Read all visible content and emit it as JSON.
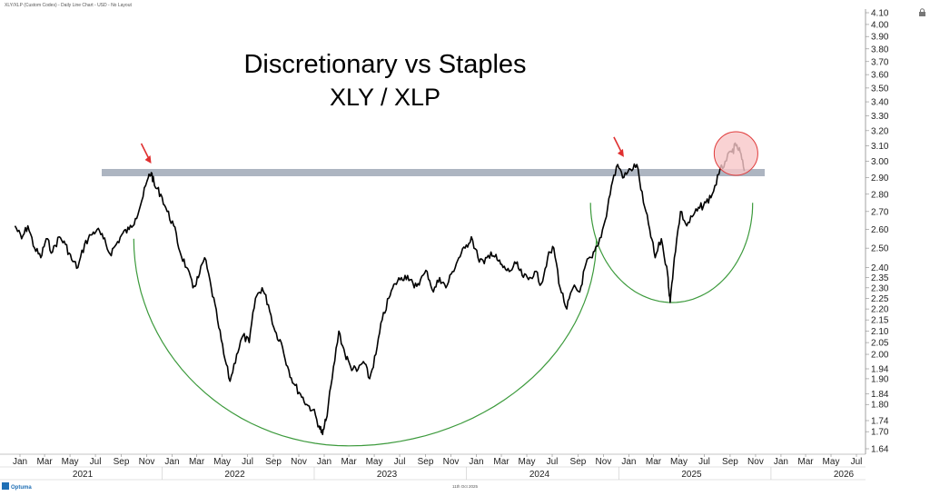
{
  "header": {
    "caption": "XLY/XLP (Custom Codes) - Daily Line Chart - USD - No Layout"
  },
  "footer": {
    "brand": "Optuma",
    "date_stamp": "11th Oct 2025"
  },
  "colors": {
    "price_line": "#000000",
    "resistance_band": "#adb5c1",
    "cup_arcs": "#3c9a3c",
    "arrows": "#e03030",
    "circle_fill": "#f7c7c8",
    "circle_stroke": "#e03a3a",
    "axis": "#8a8a8a"
  },
  "icons": {
    "lock": "lock-icon",
    "logo": "optuma-logo-icon"
  },
  "chart_data": {
    "type": "line",
    "title": "Discretionary vs Staples",
    "subtitle": "XLY / XLP",
    "xlabel": "",
    "ylabel": "",
    "ylim": [
      1.62,
      4.12
    ],
    "y_scale": "log",
    "y_ticks": [
      "4.10",
      "4.00",
      "3.90",
      "3.80",
      "3.70",
      "3.60",
      "3.50",
      "3.40",
      "3.30",
      "3.20",
      "3.10",
      "3.00",
      "2.90",
      "2.80",
      "2.70",
      "2.60",
      "2.50",
      "2.40",
      "2.35",
      "2.30",
      "2.25",
      "2.20",
      "2.15",
      "2.10",
      "2.05",
      "2.00",
      "1.94",
      "1.90",
      "1.84",
      "1.80",
      "1.74",
      "1.70",
      "1.64"
    ],
    "x_month_ticks": [
      {
        "date": "2021-01-01",
        "label": "Jan"
      },
      {
        "date": "2021-03-01",
        "label": "Mar"
      },
      {
        "date": "2021-05-01",
        "label": "May"
      },
      {
        "date": "2021-07-01",
        "label": "Jul"
      },
      {
        "date": "2021-09-01",
        "label": "Sep"
      },
      {
        "date": "2021-11-01",
        "label": "Nov"
      },
      {
        "date": "2022-01-01",
        "label": "Jan"
      },
      {
        "date": "2022-03-01",
        "label": "Mar"
      },
      {
        "date": "2022-05-01",
        "label": "May"
      },
      {
        "date": "2022-07-01",
        "label": "Jul"
      },
      {
        "date": "2022-09-01",
        "label": "Sep"
      },
      {
        "date": "2022-11-01",
        "label": "Nov"
      },
      {
        "date": "2023-01-01",
        "label": "Jan"
      },
      {
        "date": "2023-03-01",
        "label": "Mar"
      },
      {
        "date": "2023-05-01",
        "label": "May"
      },
      {
        "date": "2023-07-01",
        "label": "Jul"
      },
      {
        "date": "2023-09-01",
        "label": "Sep"
      },
      {
        "date": "2023-11-01",
        "label": "Nov"
      },
      {
        "date": "2024-01-01",
        "label": "Jan"
      },
      {
        "date": "2024-03-01",
        "label": "Mar"
      },
      {
        "date": "2024-05-01",
        "label": "May"
      },
      {
        "date": "2024-07-01",
        "label": "Jul"
      },
      {
        "date": "2024-09-01",
        "label": "Sep"
      },
      {
        "date": "2024-11-01",
        "label": "Nov"
      },
      {
        "date": "2025-01-01",
        "label": "Jan"
      },
      {
        "date": "2025-03-01",
        "label": "Mar"
      },
      {
        "date": "2025-05-01",
        "label": "May"
      },
      {
        "date": "2025-07-01",
        "label": "Jul"
      },
      {
        "date": "2025-09-01",
        "label": "Sep"
      },
      {
        "date": "2025-11-01",
        "label": "Nov"
      },
      {
        "date": "2026-01-01",
        "label": "Jan"
      },
      {
        "date": "2026-03-01",
        "label": "Mar"
      },
      {
        "date": "2026-05-01",
        "label": "May"
      },
      {
        "date": "2026-07-01",
        "label": "Jul"
      }
    ],
    "x_year_labels": [
      {
        "date": "2021-07-01",
        "label": "2021"
      },
      {
        "date": "2022-07-01",
        "label": "2022"
      },
      {
        "date": "2023-07-01",
        "label": "2023"
      },
      {
        "date": "2024-07-01",
        "label": "2024"
      },
      {
        "date": "2025-07-01",
        "label": "2025"
      },
      {
        "date": "2026-07-01",
        "label": "2026"
      }
    ],
    "x_year_boundaries": [
      "2022-01-01",
      "2023-01-01",
      "2024-01-01",
      "2025-01-01",
      "2026-01-01"
    ],
    "series": [
      {
        "points": [
          [
            "2020-12-20",
            2.62
          ],
          [
            "2021-01-05",
            2.55
          ],
          [
            "2021-01-20",
            2.62
          ],
          [
            "2021-02-05",
            2.5
          ],
          [
            "2021-02-20",
            2.45
          ],
          [
            "2021-03-05",
            2.55
          ],
          [
            "2021-03-20",
            2.48
          ],
          [
            "2021-04-05",
            2.56
          ],
          [
            "2021-04-20",
            2.52
          ],
          [
            "2021-05-05",
            2.44
          ],
          [
            "2021-05-20",
            2.4
          ],
          [
            "2021-06-05",
            2.52
          ],
          [
            "2021-06-20",
            2.57
          ],
          [
            "2021-07-05",
            2.6
          ],
          [
            "2021-07-20",
            2.55
          ],
          [
            "2021-08-05",
            2.47
          ],
          [
            "2021-08-20",
            2.52
          ],
          [
            "2021-09-05",
            2.58
          ],
          [
            "2021-09-20",
            2.6
          ],
          [
            "2021-10-05",
            2.66
          ],
          [
            "2021-10-20",
            2.76
          ],
          [
            "2021-11-05",
            2.9
          ],
          [
            "2021-11-12",
            2.93
          ],
          [
            "2021-11-20",
            2.85
          ],
          [
            "2021-12-05",
            2.8
          ],
          [
            "2021-12-20",
            2.7
          ],
          [
            "2022-01-05",
            2.62
          ],
          [
            "2022-01-20",
            2.48
          ],
          [
            "2022-02-05",
            2.4
          ],
          [
            "2022-02-20",
            2.3
          ],
          [
            "2022-03-05",
            2.35
          ],
          [
            "2022-03-20",
            2.45
          ],
          [
            "2022-04-05",
            2.3
          ],
          [
            "2022-04-20",
            2.15
          ],
          [
            "2022-05-05",
            2.0
          ],
          [
            "2022-05-20",
            1.89
          ],
          [
            "2022-06-05",
            2.0
          ],
          [
            "2022-06-20",
            2.08
          ],
          [
            "2022-07-05",
            2.05
          ],
          [
            "2022-07-20",
            2.25
          ],
          [
            "2022-08-05",
            2.3
          ],
          [
            "2022-08-20",
            2.22
          ],
          [
            "2022-09-05",
            2.1
          ],
          [
            "2022-09-20",
            2.05
          ],
          [
            "2022-10-05",
            1.95
          ],
          [
            "2022-10-20",
            1.88
          ],
          [
            "2022-11-05",
            1.84
          ],
          [
            "2022-11-20",
            1.8
          ],
          [
            "2022-12-05",
            1.78
          ],
          [
            "2022-12-20",
            1.72
          ],
          [
            "2022-12-28",
            1.69
          ],
          [
            "2023-01-05",
            1.74
          ],
          [
            "2023-01-20",
            1.9
          ],
          [
            "2023-02-05",
            2.1
          ],
          [
            "2023-02-20",
            2.0
          ],
          [
            "2023-03-05",
            1.95
          ],
          [
            "2023-03-20",
            1.93
          ],
          [
            "2023-04-05",
            1.97
          ],
          [
            "2023-04-20",
            1.9
          ],
          [
            "2023-05-05",
            2.0
          ],
          [
            "2023-05-20",
            2.15
          ],
          [
            "2023-06-05",
            2.25
          ],
          [
            "2023-06-20",
            2.32
          ],
          [
            "2023-07-05",
            2.35
          ],
          [
            "2023-07-20",
            2.36
          ],
          [
            "2023-08-05",
            2.3
          ],
          [
            "2023-08-20",
            2.34
          ],
          [
            "2023-09-05",
            2.38
          ],
          [
            "2023-09-20",
            2.28
          ],
          [
            "2023-10-05",
            2.35
          ],
          [
            "2023-10-20",
            2.3
          ],
          [
            "2023-11-05",
            2.38
          ],
          [
            "2023-11-20",
            2.45
          ],
          [
            "2023-12-05",
            2.5
          ],
          [
            "2023-12-20",
            2.56
          ],
          [
            "2024-01-05",
            2.45
          ],
          [
            "2024-01-20",
            2.42
          ],
          [
            "2024-02-05",
            2.48
          ],
          [
            "2024-02-20",
            2.44
          ],
          [
            "2024-03-05",
            2.4
          ],
          [
            "2024-03-20",
            2.38
          ],
          [
            "2024-04-05",
            2.42
          ],
          [
            "2024-04-20",
            2.36
          ],
          [
            "2024-05-05",
            2.34
          ],
          [
            "2024-05-20",
            2.38
          ],
          [
            "2024-06-05",
            2.32
          ],
          [
            "2024-06-20",
            2.45
          ],
          [
            "2024-07-05",
            2.5
          ],
          [
            "2024-07-20",
            2.3
          ],
          [
            "2024-08-05",
            2.2
          ],
          [
            "2024-08-20",
            2.3
          ],
          [
            "2024-09-05",
            2.28
          ],
          [
            "2024-09-20",
            2.42
          ],
          [
            "2024-10-05",
            2.45
          ],
          [
            "2024-10-20",
            2.52
          ],
          [
            "2024-11-05",
            2.65
          ],
          [
            "2024-11-20",
            2.85
          ],
          [
            "2024-12-05",
            2.98
          ],
          [
            "2024-12-20",
            2.9
          ],
          [
            "2025-01-05",
            2.95
          ],
          [
            "2025-01-20",
            2.98
          ],
          [
            "2025-02-05",
            2.75
          ],
          [
            "2025-02-20",
            2.6
          ],
          [
            "2025-03-05",
            2.45
          ],
          [
            "2025-03-20",
            2.55
          ],
          [
            "2025-04-05",
            2.35
          ],
          [
            "2025-04-10",
            2.23
          ],
          [
            "2025-04-20",
            2.45
          ],
          [
            "2025-05-05",
            2.7
          ],
          [
            "2025-05-20",
            2.62
          ],
          [
            "2025-06-05",
            2.68
          ],
          [
            "2025-06-20",
            2.72
          ],
          [
            "2025-07-05",
            2.75
          ],
          [
            "2025-07-20",
            2.8
          ],
          [
            "2025-08-05",
            2.92
          ],
          [
            "2025-08-20",
            3.0
          ],
          [
            "2025-09-05",
            3.06
          ],
          [
            "2025-09-15",
            3.1
          ],
          [
            "2025-09-25",
            3.06
          ],
          [
            "2025-10-05",
            2.94
          ]
        ]
      }
    ],
    "annotations": [
      {
        "kind": "resistance_band",
        "value": 2.93
      },
      {
        "kind": "arrow",
        "date": "2021-11-12",
        "value": 2.93
      },
      {
        "kind": "arrow",
        "date": "2024-12-20",
        "value": 2.97
      },
      {
        "kind": "highlight_circle",
        "date": "2025-09-15",
        "value": 3.05
      },
      {
        "kind": "cup_arc",
        "from_date": "2021-10-01",
        "to_date": "2024-10-15",
        "center_date": "2023-03-01",
        "edge_value": 2.55,
        "bottom_value": 1.65
      },
      {
        "kind": "cup_arc",
        "from_date": "2024-10-01",
        "to_date": "2025-10-25",
        "center_date": "2025-04-15",
        "edge_value": 2.75,
        "bottom_value": 2.23
      }
    ]
  }
}
